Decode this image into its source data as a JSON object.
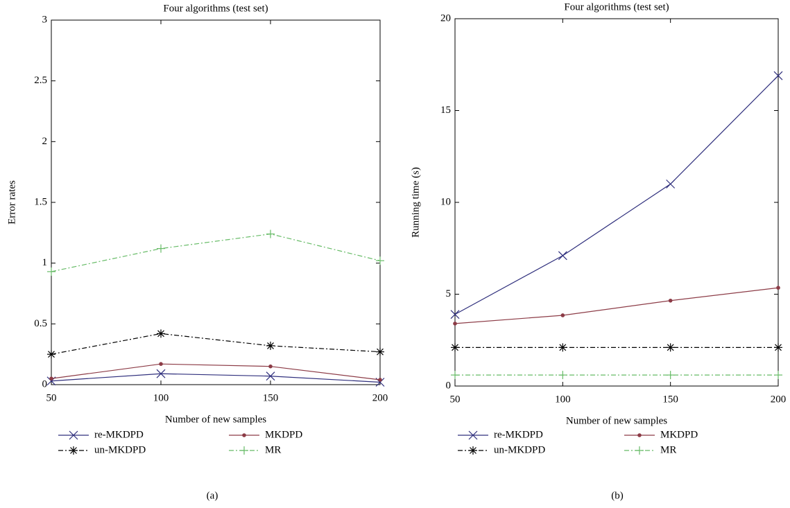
{
  "chart_data": [
    {
      "type": "line",
      "title": "Four algorithms (test set)",
      "x_label": "Number of new samples",
      "y_label": "Error rates",
      "caption": "(a)",
      "x": [
        50,
        100,
        150,
        200
      ],
      "xlim": [
        50,
        200
      ],
      "xticks": [
        50,
        100,
        150,
        200
      ],
      "ylim": [
        0,
        3
      ],
      "yticks": [
        0,
        0.5,
        1,
        1.5,
        2,
        2.5,
        3
      ],
      "series": [
        {
          "name": "re-MKDPD",
          "color": "#2e2e7c",
          "marker": "x",
          "line_style": "solid",
          "values": [
            0.03,
            0.09,
            0.07,
            0.02
          ]
        },
        {
          "name": "MKDPD",
          "color": "#8c3b46",
          "marker": "dot",
          "line_style": "solid",
          "values": [
            0.05,
            0.17,
            0.15,
            0.04
          ]
        },
        {
          "name": "un-MKDPD",
          "color": "#000000",
          "marker": "asterisk",
          "line_style": "dashdot",
          "values": [
            0.25,
            0.42,
            0.32,
            0.27
          ]
        },
        {
          "name": "MR",
          "color": "#66bb66",
          "marker": "plus",
          "line_style": "dashdot",
          "values": [
            0.93,
            1.12,
            1.24,
            1.02
          ]
        }
      ]
    },
    {
      "type": "line",
      "title": "Four algorithms (test set)",
      "x_label": "Number of new samples",
      "y_label": "Running time (s)",
      "caption": "(b)",
      "x": [
        50,
        100,
        150,
        200
      ],
      "xlim": [
        50,
        200
      ],
      "xticks": [
        50,
        100,
        150,
        200
      ],
      "ylim": [
        0,
        20
      ],
      "yticks": [
        0,
        5,
        10,
        15,
        20
      ],
      "series": [
        {
          "name": "re-MKDPD",
          "color": "#2e2e7c",
          "marker": "x",
          "line_style": "solid",
          "values": [
            3.9,
            7.1,
            11.0,
            16.9
          ]
        },
        {
          "name": "MKDPD",
          "color": "#8c3b46",
          "marker": "dot",
          "line_style": "solid",
          "values": [
            3.4,
            3.85,
            4.65,
            5.35
          ]
        },
        {
          "name": "un-MKDPD",
          "color": "#000000",
          "marker": "asterisk",
          "line_style": "dashdot",
          "values": [
            2.1,
            2.1,
            2.1,
            2.1
          ]
        },
        {
          "name": "MR",
          "color": "#66bb66",
          "marker": "plus",
          "line_style": "dashdot",
          "values": [
            0.6,
            0.6,
            0.6,
            0.6
          ]
        }
      ]
    }
  ]
}
